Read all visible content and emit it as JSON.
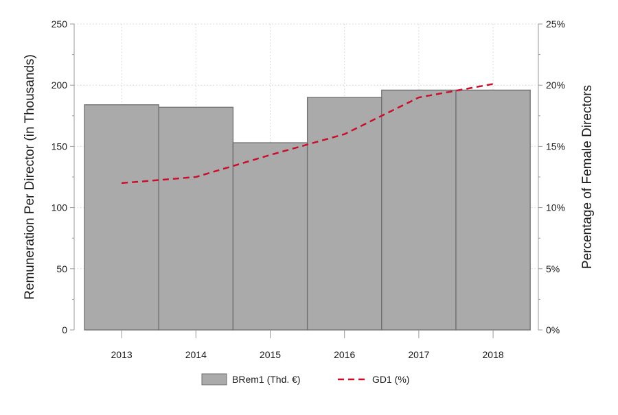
{
  "chart_data": {
    "type": "bar",
    "categories": [
      "2013",
      "2014",
      "2015",
      "2016",
      "2017",
      "2018"
    ],
    "series": [
      {
        "name": "BRem1 (Thd. €)",
        "type": "bar",
        "axis": "left",
        "values": [
          184,
          182,
          153,
          190,
          196,
          196
        ]
      },
      {
        "name": "GD1 (%)",
        "type": "line",
        "style": "dashed",
        "axis": "right",
        "values": [
          12.0,
          12.5,
          14.3,
          16.0,
          19.0,
          20.1
        ]
      }
    ],
    "ylabel": "Remuneration Per Director (in Thousands)",
    "ylim": [
      0,
      250
    ],
    "y_ticks": [
      "0",
      "50",
      "100",
      "150",
      "200",
      "250"
    ],
    "y2label": "Percentage of Female Directors",
    "y2lim": [
      0,
      25
    ],
    "y2_ticks": [
      "0%",
      "5%",
      "10%",
      "15%",
      "20%",
      "25%"
    ],
    "grid": true,
    "legend_position": "bottom",
    "colors": {
      "bar_fill": "#aaaaaa",
      "bar_stroke": "#6e6e6e",
      "line": "#c8102e",
      "axis": "#999999",
      "grid": "#d0d0d0"
    }
  }
}
